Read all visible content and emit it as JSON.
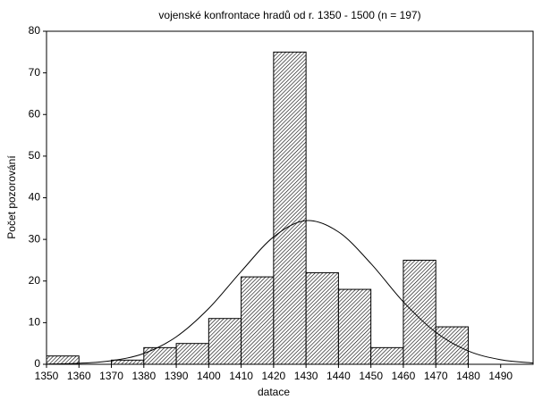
{
  "chart_data": {
    "type": "histogram",
    "title": "vojenské konfrontace hradů od r. 1350 - 1500 (n = 197)",
    "xlabel": "datace",
    "ylabel": "Počet pozorování",
    "bins": [
      1350,
      1360,
      1370,
      1380,
      1390,
      1400,
      1410,
      1420,
      1430,
      1440,
      1450,
      1460,
      1470,
      1480
    ],
    "values": [
      2,
      0,
      1,
      4,
      5,
      11,
      21,
      75,
      22,
      18,
      4,
      25,
      9
    ],
    "curve": {
      "x": [
        1350,
        1360,
        1370,
        1380,
        1390,
        1400,
        1410,
        1420,
        1430,
        1440,
        1450,
        1460,
        1470,
        1480,
        1490,
        1500
      ],
      "values": [
        0.05,
        0.24,
        0.87,
        2.6,
        6.6,
        13.4,
        22.3,
        30.6,
        34.5,
        31.8,
        24.2,
        15.0,
        7.7,
        3.2,
        1.1,
        0.31
      ]
    },
    "xlim": [
      1350,
      1500
    ],
    "xticks": [
      1350,
      1360,
      1370,
      1380,
      1390,
      1400,
      1410,
      1420,
      1430,
      1440,
      1450,
      1460,
      1470,
      1480,
      1490
    ],
    "ylim": [
      0,
      80
    ],
    "yticks": [
      0,
      10,
      20,
      30,
      40,
      50,
      60,
      70,
      80
    ]
  }
}
